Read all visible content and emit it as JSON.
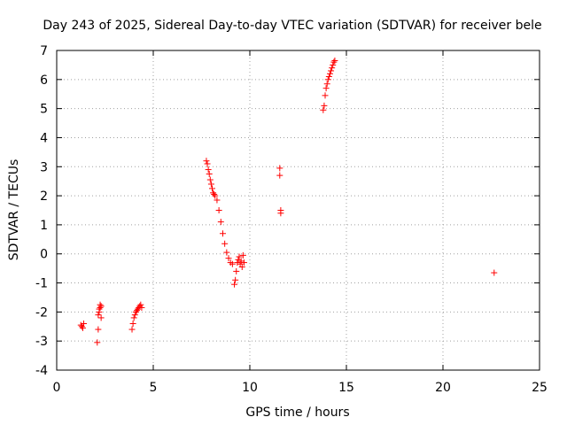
{
  "chart_data": {
    "type": "scatter",
    "title": "Day 243 of 2025, Sidereal Day-to-day VTEC variation (SDTVAR) for receiver bele",
    "xlabel": "GPS time / hours",
    "ylabel": "SDTVAR / TECUs",
    "xlim": [
      0,
      25
    ],
    "ylim": [
      -4,
      7
    ],
    "x_ticks": [
      0,
      5,
      10,
      15,
      20,
      25
    ],
    "y_ticks": [
      -4,
      -3,
      -2,
      -1,
      0,
      1,
      2,
      3,
      4,
      5,
      6,
      7
    ],
    "x_tick_labels": [
      "0",
      "5",
      "10",
      "15",
      "20",
      "25"
    ],
    "y_tick_labels": [
      "-4",
      "-3",
      "-2",
      "-1",
      "0",
      "1",
      "2",
      "3",
      "4",
      "5",
      "6",
      "7"
    ],
    "grid": true,
    "marker": "+",
    "colors": {
      "series": "#ff0000",
      "grid": "#a0a0a0",
      "axis": "#000000"
    },
    "series": [
      {
        "x": [
          1.25,
          1.3,
          1.35,
          1.4,
          2.1,
          2.15,
          2.15,
          2.2,
          2.2,
          2.25,
          2.25,
          2.3,
          2.3,
          3.9,
          3.95,
          4.0,
          4.05,
          4.1,
          4.15,
          4.2,
          4.25,
          4.3,
          4.35,
          4.4,
          7.75,
          7.8,
          7.85,
          7.9,
          7.95,
          8.0,
          8.05,
          8.1,
          8.15,
          8.2,
          8.3,
          8.4,
          8.5,
          8.6,
          8.7,
          8.8,
          8.9,
          9.0,
          9.1,
          9.2,
          9.25,
          9.3,
          9.35,
          9.4,
          9.45,
          9.5,
          9.55,
          9.6,
          9.65,
          9.7,
          11.55,
          11.55,
          11.6,
          11.6,
          13.8,
          13.85,
          13.9,
          13.95,
          14.0,
          14.05,
          14.1,
          14.15,
          14.2,
          14.25,
          14.3,
          14.35,
          14.4,
          22.65
        ],
        "y": [
          -2.45,
          -2.5,
          -2.55,
          -2.4,
          -3.05,
          -2.6,
          -2.1,
          -2.0,
          -1.9,
          -1.85,
          -1.75,
          -1.8,
          -2.2,
          -2.6,
          -2.4,
          -2.2,
          -2.1,
          -2.0,
          -1.95,
          -1.9,
          -1.85,
          -1.8,
          -1.75,
          -1.85,
          3.2,
          3.1,
          2.9,
          2.75,
          2.55,
          2.4,
          2.25,
          2.1,
          2.05,
          2.0,
          1.85,
          1.5,
          1.1,
          0.7,
          0.35,
          0.05,
          -0.15,
          -0.3,
          -0.35,
          -1.05,
          -0.9,
          -0.6,
          -0.3,
          -0.2,
          -0.1,
          -0.35,
          -0.25,
          -0.45,
          -0.05,
          -0.3,
          2.95,
          2.7,
          1.5,
          1.4,
          4.95,
          5.1,
          5.45,
          5.7,
          5.85,
          6.0,
          6.1,
          6.2,
          6.3,
          6.4,
          6.5,
          6.6,
          6.65,
          -0.65
        ]
      }
    ]
  }
}
